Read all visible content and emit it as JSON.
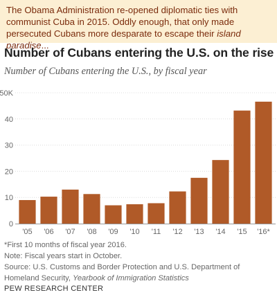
{
  "banner": {
    "text_before": "The Obama Administration re-opened diplomatic ties with communist Cuba in 2015. Oddly enough, that only made persecuted Cubans more desparate to escape their ",
    "text_italic": "island paradise",
    "text_after": "..."
  },
  "header": {
    "title": "Number of Cubans entering the U.S. on the rise",
    "subtitle": "Number of Cubans entering the U.S., by fiscal year"
  },
  "chart_data": {
    "type": "bar",
    "title": "Number of Cubans entering the U.S. on the rise",
    "subtitle": "Number of Cubans entering the U.S., by fiscal year",
    "xlabel": "",
    "ylabel": "",
    "categories": [
      "'05",
      "'06",
      "'07",
      "'08",
      "'09",
      "'10",
      "'11",
      "'12",
      "'13",
      "'14",
      "'15",
      "'16*"
    ],
    "values": [
      9,
      10.3,
      13,
      11.3,
      7,
      7.4,
      7.8,
      12.3,
      17.5,
      24.3,
      43.2,
      46.6
    ],
    "y_ticks": [
      0,
      10,
      20,
      30,
      40,
      50
    ],
    "y_tick_labels": [
      "0",
      "10",
      "20",
      "30",
      "40",
      "50K"
    ],
    "ylim": [
      0,
      50
    ],
    "grid": true,
    "bar_color": "#b05a28"
  },
  "notes": {
    "footnote": "*First 10 months of fiscal year 2016.",
    "note": "Note: Fiscal years start in October.",
    "source_plain": "Source: U.S. Customs and Border Protection and U.S. Department of Homeland Security, ",
    "source_italic": "Yearbook of Immigration Statistics"
  },
  "credit": "PEW RESEARCH CENTER"
}
